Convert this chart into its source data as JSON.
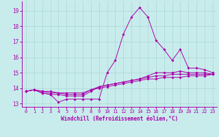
{
  "xlabel": "Windchill (Refroidissement éolien,°C)",
  "background_color": "#c8ecec",
  "grid_color": "#b0d8d8",
  "line_color": "#aa00aa",
  "xlim": [
    -0.5,
    23.5
  ],
  "ylim": [
    12.8,
    19.6
  ],
  "yticks": [
    13,
    14,
    15,
    16,
    17,
    18,
    19
  ],
  "xticks": [
    0,
    1,
    2,
    3,
    4,
    5,
    6,
    7,
    8,
    9,
    10,
    11,
    12,
    13,
    14,
    15,
    16,
    17,
    18,
    19,
    20,
    21,
    22,
    23
  ],
  "series": [
    [
      13.8,
      13.9,
      13.7,
      13.6,
      13.1,
      13.3,
      13.3,
      13.3,
      13.3,
      13.3,
      15.0,
      15.8,
      17.5,
      18.6,
      19.2,
      18.6,
      17.1,
      16.5,
      15.8,
      16.5,
      15.3,
      15.3,
      15.2,
      15.0
    ],
    [
      13.8,
      13.9,
      13.7,
      13.6,
      13.6,
      13.5,
      13.5,
      13.5,
      13.8,
      14.1,
      14.2,
      14.3,
      14.4,
      14.5,
      14.6,
      14.8,
      15.0,
      15.0,
      15.0,
      15.1,
      15.0,
      15.0,
      15.0,
      14.9
    ],
    [
      13.8,
      13.9,
      13.8,
      13.7,
      13.7,
      13.6,
      13.6,
      13.6,
      13.9,
      14.1,
      14.2,
      14.3,
      14.4,
      14.5,
      14.6,
      14.7,
      14.8,
      14.8,
      14.9,
      14.9,
      14.9,
      14.9,
      14.9,
      14.9
    ],
    [
      13.8,
      13.9,
      13.8,
      13.8,
      13.7,
      13.7,
      13.7,
      13.7,
      13.9,
      14.0,
      14.1,
      14.2,
      14.3,
      14.4,
      14.5,
      14.6,
      14.6,
      14.7,
      14.7,
      14.7,
      14.8,
      14.8,
      14.8,
      14.9
    ]
  ]
}
